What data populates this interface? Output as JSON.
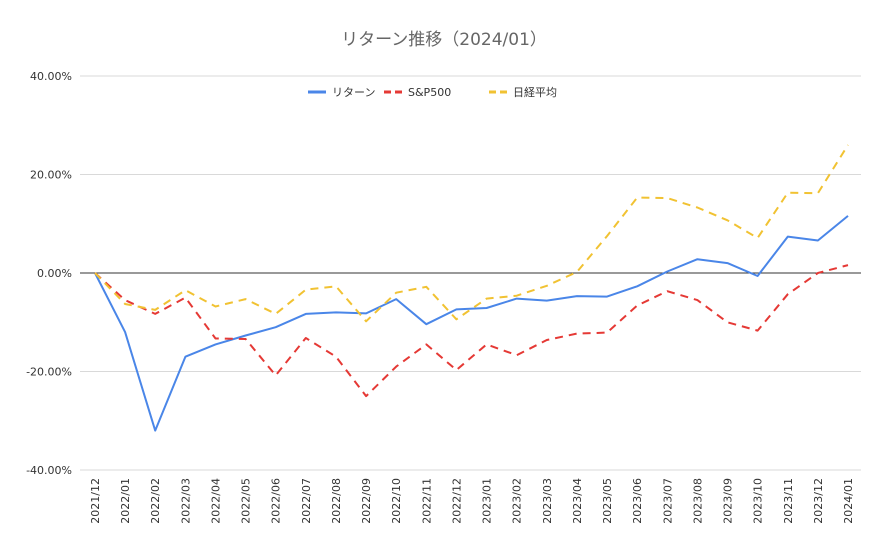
{
  "chart_data": {
    "type": "line",
    "title": "リターン推移（2024/01）",
    "xlabel": "",
    "ylabel": "",
    "ylim": [
      -0.4,
      0.4
    ],
    "yticks": [
      {
        "value": 0.4,
        "label": "40.00%"
      },
      {
        "value": 0.2,
        "label": "20.00%"
      },
      {
        "value": 0.0,
        "label": "0.00%"
      },
      {
        "value": -0.2,
        "label": "-20.00%"
      },
      {
        "value": -0.4,
        "label": "-40.00%"
      }
    ],
    "categories": [
      "2021/12",
      "2022/01",
      "2022/02",
      "2022/03",
      "2022/04",
      "2022/05",
      "2022/06",
      "2022/07",
      "2022/08",
      "2022/09",
      "2022/10",
      "2022/11",
      "2022/12",
      "2023/01",
      "2023/02",
      "2023/03",
      "2023/04",
      "2023/05",
      "2023/06",
      "2023/07",
      "2023/08",
      "2023/09",
      "2023/10",
      "2023/11",
      "2023/12",
      "2024/01"
    ],
    "legend_position": "top",
    "grid": true,
    "series": [
      {
        "name": "リターン",
        "color": "#4a86e8",
        "dash": "solid",
        "values": [
          0.0,
          -0.12,
          -0.32,
          -0.17,
          -0.145,
          -0.127,
          -0.11,
          -0.083,
          -0.08,
          -0.082,
          -0.053,
          -0.104,
          -0.074,
          -0.071,
          -0.052,
          -0.056,
          -0.047,
          -0.048,
          -0.027,
          0.003,
          0.028,
          0.02,
          -0.006,
          0.074,
          0.066,
          0.116
        ]
      },
      {
        "name": "S&P500",
        "color": "#e53935",
        "dash": "dashed",
        "values": [
          0.0,
          -0.055,
          -0.083,
          -0.05,
          -0.133,
          -0.134,
          -0.208,
          -0.132,
          -0.17,
          -0.25,
          -0.19,
          -0.145,
          -0.197,
          -0.145,
          -0.167,
          -0.136,
          -0.123,
          -0.121,
          -0.066,
          -0.037,
          -0.055,
          -0.1,
          -0.117,
          -0.043,
          0.0,
          0.016
        ]
      },
      {
        "name": "日経平均",
        "color": "#f1c232",
        "dash": "dashed",
        "values": [
          0.0,
          -0.063,
          -0.075,
          -0.035,
          -0.068,
          -0.053,
          -0.083,
          -0.034,
          -0.027,
          -0.098,
          -0.04,
          -0.028,
          -0.094,
          -0.052,
          -0.046,
          -0.026,
          0.002,
          0.075,
          0.153,
          0.152,
          0.133,
          0.107,
          0.071,
          0.163,
          0.162,
          0.26
        ]
      }
    ]
  }
}
